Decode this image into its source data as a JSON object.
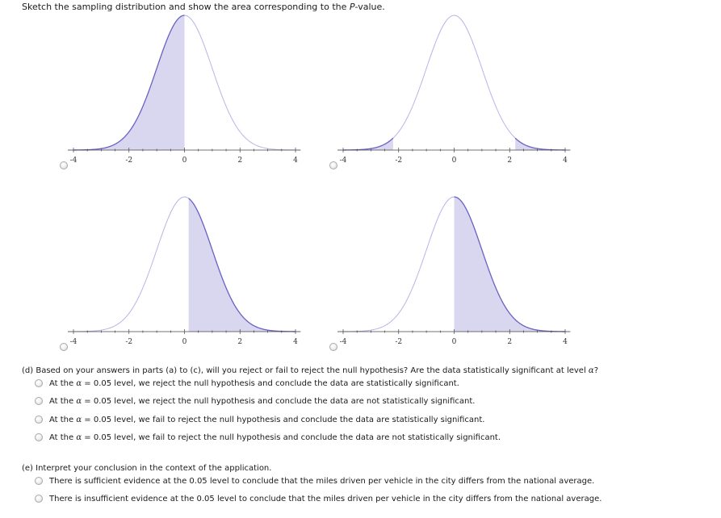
{
  "prompt": {
    "text_before": "Sketch the sampling distribution and show the area corresponding to the ",
    "text_italic": "P",
    "text_after": "-value."
  },
  "graph_axis": {
    "tick_labels": [
      "-4",
      "-2",
      "0",
      "2",
      "4"
    ]
  },
  "graph_options": [
    {
      "id": "left-tail",
      "shaded": "x <= 0"
    },
    {
      "id": "two-tail",
      "shaded": "|x| >= 2.2"
    },
    {
      "id": "right-tail-offset",
      "shaded": "x >= 0.15"
    },
    {
      "id": "right-tail",
      "shaded": "x >= 0"
    }
  ],
  "colors": {
    "curve": "#b8b4e6",
    "shaded_fill": "#d9d7ef",
    "shaded_edge": "#6a63c4",
    "axis": "#444444"
  },
  "part_d": {
    "question_before": "(d) Based on your answers in parts (a) to (c), will you reject or fail to reject the null hypothesis? Are the data statistically significant at level ",
    "question_alpha": "α",
    "question_after": "?",
    "options": [
      {
        "prefix": "At the ",
        "alpha": "α",
        "rest": " = 0.05 level, we reject the null hypothesis and conclude the data are statistically significant."
      },
      {
        "prefix": "At the ",
        "alpha": "α",
        "rest": " = 0.05 level, we reject the null hypothesis and conclude the data are not statistically significant."
      },
      {
        "prefix": "At the ",
        "alpha": "α",
        "rest": " = 0.05 level, we fail to reject the null hypothesis and conclude the data are statistically significant."
      },
      {
        "prefix": "At the ",
        "alpha": "α",
        "rest": " = 0.05 level, we fail to reject the null hypothesis and conclude the data are not statistically significant."
      }
    ]
  },
  "part_e": {
    "question": "(e) Interpret your conclusion in the context of the application.",
    "options": [
      {
        "text": "There is sufficient evidence at the 0.05 level to conclude that the miles driven per vehicle in the city differs from the national average."
      },
      {
        "text": "There is insufficient evidence at the 0.05 level to conclude that the miles driven per vehicle in the city differs from the national average."
      }
    ]
  }
}
